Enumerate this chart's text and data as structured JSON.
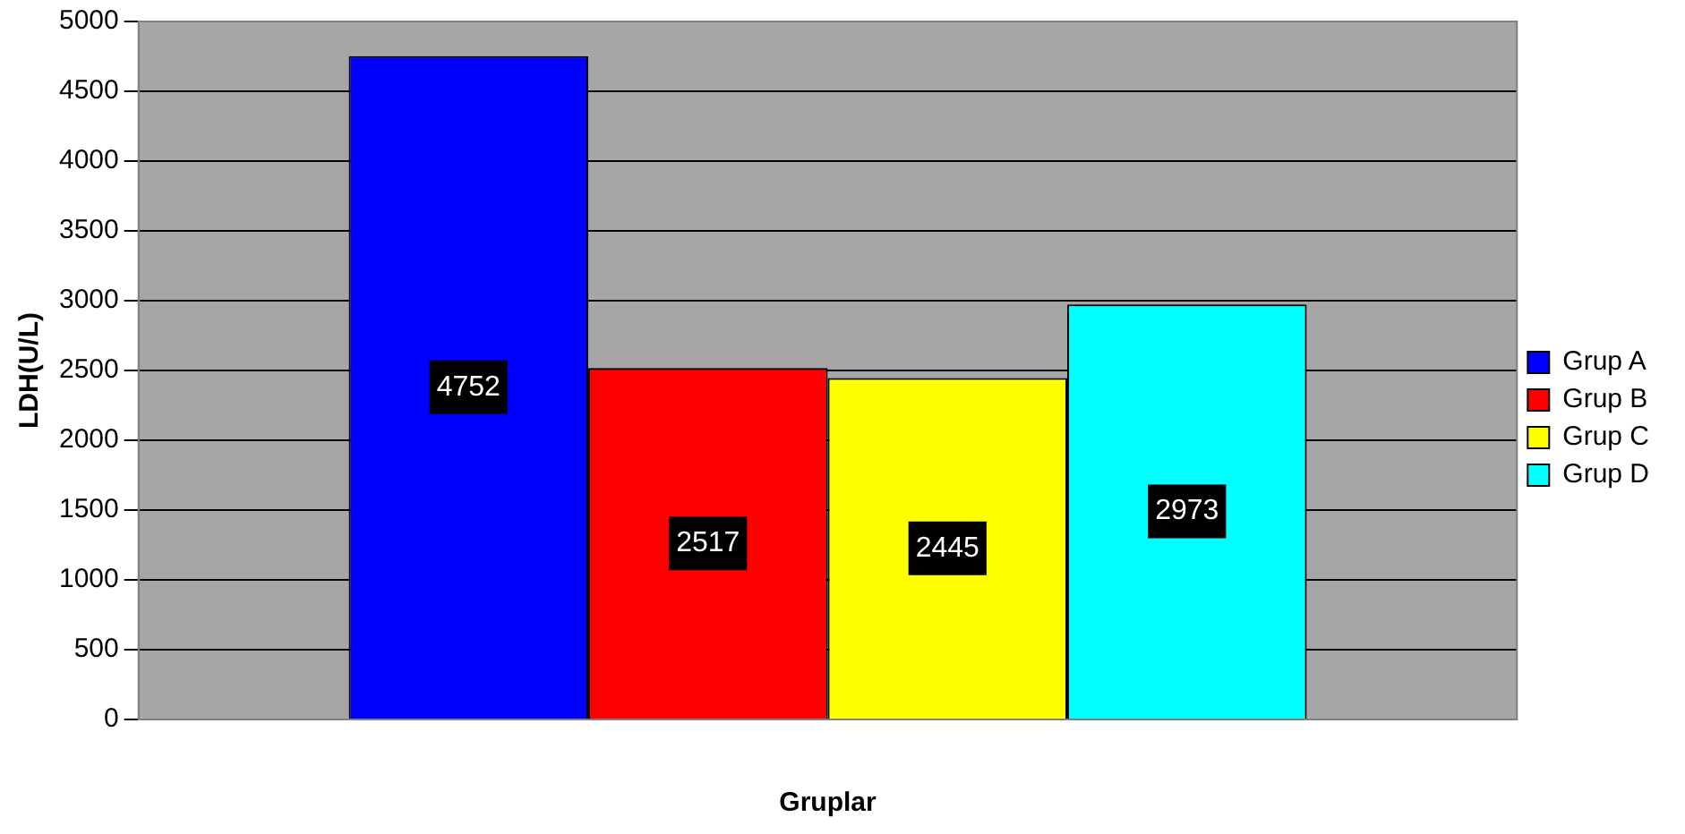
{
  "chart_data": {
    "type": "bar",
    "categories": [
      null
    ],
    "xlabel": "Gruplar",
    "ylabel": "LDH(U/L)",
    "ylim": [
      0,
      5000
    ],
    "yticks": [
      0,
      500,
      1000,
      1500,
      2000,
      2500,
      3000,
      3500,
      4000,
      4500,
      5000
    ],
    "grid": "y",
    "legend": "right",
    "data_labels": true,
    "series": [
      {
        "name": "Grup A",
        "color": "#0000ff",
        "values": [
          4752
        ]
      },
      {
        "name": "Grup B",
        "color": "#ff0000",
        "values": [
          2517
        ]
      },
      {
        "name": "Grup C",
        "color": "#ffff00",
        "values": [
          2445
        ]
      },
      {
        "name": "Grup D",
        "color": "#00ffff",
        "values": [
          2973
        ]
      }
    ]
  }
}
